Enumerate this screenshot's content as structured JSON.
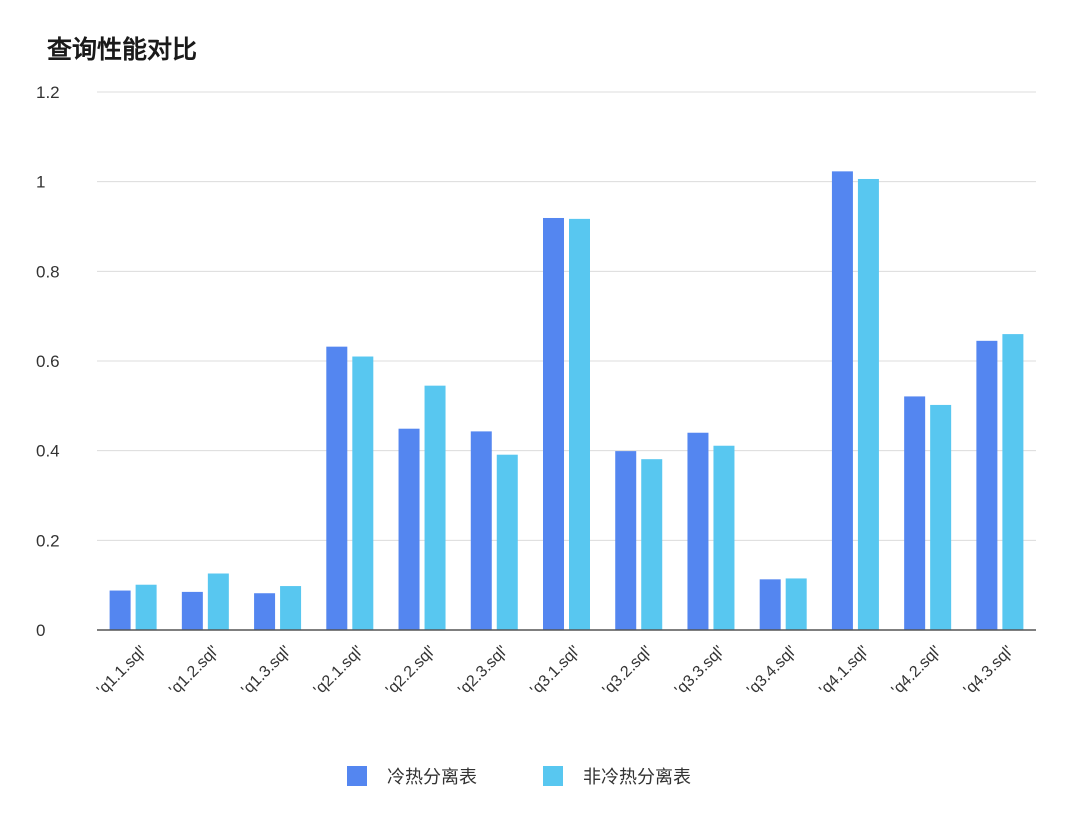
{
  "chart_data": {
    "type": "bar",
    "title": "查询性能对比",
    "xlabel": "",
    "ylabel": "",
    "ylim": [
      0,
      1.2
    ],
    "yticks": [
      "0",
      "0.2",
      "0.4",
      "0.6",
      "0.8",
      "1",
      "1.2"
    ],
    "grid": true,
    "legend_position": "bottom",
    "categories": [
      "'q1.1.sql'",
      "'q1.2.sql'",
      "'q1.3.sql'",
      "'q2.1.sql'",
      "'q2.2.sql'",
      "'q2.3.sql'",
      "'q3.1.sql'",
      "'q3.2.sql'",
      "'q3.3.sql'",
      "'q3.4.sql'",
      "'q4.1.sql'",
      "'q4.2.sql'",
      "'q4.3.sql'"
    ],
    "series": [
      {
        "name": "冷热分离表",
        "color": "#5486F0",
        "values": [
          0.088,
          0.085,
          0.082,
          0.632,
          0.449,
          0.443,
          0.919,
          0.399,
          0.44,
          0.113,
          1.023,
          0.521,
          0.645
        ]
      },
      {
        "name": "非冷热分离表",
        "color": "#58C7F0",
        "values": [
          0.101,
          0.126,
          0.098,
          0.61,
          0.545,
          0.391,
          0.917,
          0.381,
          0.411,
          0.115,
          1.006,
          0.502,
          0.66
        ]
      }
    ]
  }
}
